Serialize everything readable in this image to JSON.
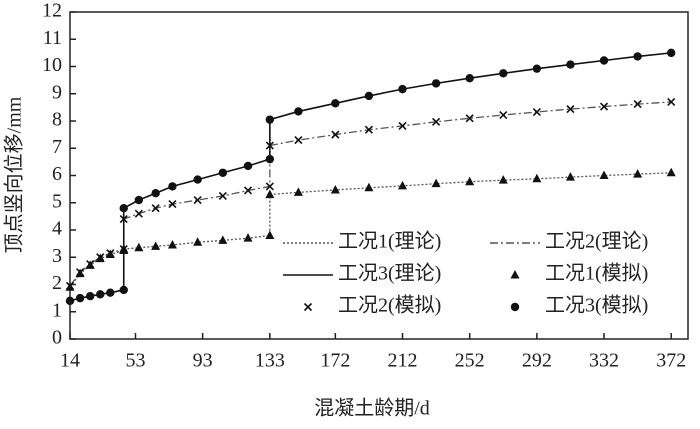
{
  "chart_data": {
    "type": "line",
    "x_label": "混凝土龄期/d",
    "y_label": "顶点竖向位移/mm",
    "x": [
      14,
      20,
      26,
      32,
      38,
      46,
      46,
      55,
      65,
      75,
      90,
      105,
      120,
      133,
      133,
      150,
      172,
      192,
      212,
      232,
      252,
      272,
      292,
      312,
      332,
      352,
      372
    ],
    "xlim": [
      14,
      382
    ],
    "xticks": [
      14,
      53,
      93,
      133,
      172,
      212,
      252,
      292,
      332,
      372
    ],
    "ylim": [
      0,
      12
    ],
    "yticks": [
      0,
      1,
      2,
      3,
      4,
      5,
      6,
      7,
      8,
      9,
      10,
      11,
      12
    ],
    "grid": false,
    "legend": "lower right",
    "series": [
      {
        "name": "工况1(理论)",
        "color": "#555555",
        "style": "dotted",
        "values": [
          1.9,
          2.4,
          2.7,
          2.95,
          3.1,
          3.25,
          3.3,
          3.35,
          3.4,
          3.45,
          3.55,
          3.62,
          3.7,
          3.8,
          5.3,
          5.38,
          5.47,
          5.55,
          5.62,
          5.7,
          5.77,
          5.83,
          5.88,
          5.94,
          6.0,
          6.05,
          6.1
        ]
      },
      {
        "name": "工况2(理论)",
        "color": "#555555",
        "style": "dashdot",
        "values": [
          1.95,
          2.45,
          2.75,
          3.0,
          3.15,
          3.3,
          4.4,
          4.6,
          4.8,
          4.95,
          5.1,
          5.25,
          5.45,
          5.6,
          7.1,
          7.3,
          7.5,
          7.68,
          7.82,
          7.97,
          8.1,
          8.22,
          8.33,
          8.44,
          8.53,
          8.62,
          8.7
        ]
      },
      {
        "name": "工况3(理论)",
        "color": "#111111",
        "style": "solid",
        "values": [
          1.4,
          1.5,
          1.57,
          1.64,
          1.7,
          1.8,
          4.8,
          5.1,
          5.35,
          5.6,
          5.85,
          6.1,
          6.35,
          6.6,
          8.05,
          8.35,
          8.65,
          8.92,
          9.17,
          9.38,
          9.57,
          9.75,
          9.92,
          10.07,
          10.22,
          10.37,
          10.5
        ]
      },
      {
        "name": "工况1(模拟)",
        "color": "#111111",
        "style": "triangle",
        "values": [
          1.9,
          2.4,
          2.7,
          2.95,
          3.1,
          3.25,
          3.3,
          3.35,
          3.4,
          3.45,
          3.55,
          3.62,
          3.7,
          3.8,
          5.3,
          5.38,
          5.47,
          5.55,
          5.62,
          5.7,
          5.77,
          5.83,
          5.88,
          5.94,
          6.0,
          6.05,
          6.1
        ]
      },
      {
        "name": "工况2(模拟)",
        "color": "#111111",
        "style": "cross",
        "values": [
          1.95,
          2.45,
          2.75,
          3.0,
          3.15,
          3.3,
          4.4,
          4.6,
          4.8,
          4.95,
          5.1,
          5.25,
          5.45,
          5.6,
          7.1,
          7.3,
          7.5,
          7.68,
          7.82,
          7.97,
          8.1,
          8.22,
          8.33,
          8.44,
          8.53,
          8.62,
          8.7
        ]
      },
      {
        "name": "工况3(模拟)",
        "color": "#111111",
        "style": "circle",
        "values": [
          1.4,
          1.5,
          1.57,
          1.64,
          1.7,
          1.8,
          4.8,
          5.1,
          5.35,
          5.6,
          5.85,
          6.1,
          6.35,
          6.6,
          8.05,
          8.35,
          8.65,
          8.92,
          9.17,
          9.38,
          9.57,
          9.75,
          9.92,
          10.07,
          10.22,
          10.37,
          10.5
        ]
      }
    ]
  }
}
